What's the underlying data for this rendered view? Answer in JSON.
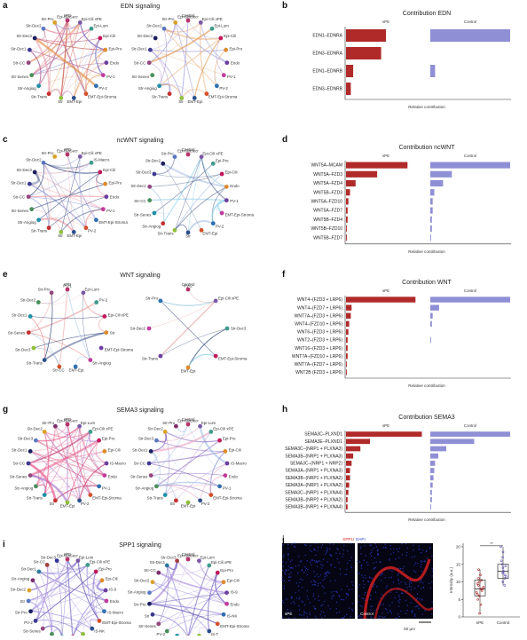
{
  "colors": {
    "spe": "#b02a2a",
    "control": "#8f8fd6",
    "bg": "#ffffff"
  },
  "panels": {
    "a": {
      "letter": "a",
      "title": "EDN signaling",
      "sub_left": "sPE",
      "sub_right": "Control",
      "left_nodes": [
        "Epi-GlaSecr",
        "Epi-Cili xPE",
        "Epi-Lum",
        "Epi-Cili",
        "Epi-Pro",
        "Endo",
        "PV-1",
        "PV-2",
        "EMT-Epi-Stroma",
        "EMT-Epi",
        "Str",
        "Str-Trans",
        "Str-Angiog",
        "Str-Senes",
        "Str-CC",
        "Str-Dec1",
        "Str-Dec3",
        "Str-Dec2",
        "Str-Pro"
      ],
      "right_nodes": [
        "Epi-GlaSecr",
        "Epi-Cili xPE",
        "Epi-Lum",
        "Epi-Cili",
        "Epi-Pro",
        "Endo",
        "PV-1",
        "PV-2",
        "EMT-Epi-Stroma",
        "EMT-Epi",
        "Str",
        "Str-Trans",
        "Str-Angiog",
        "Str-Senes",
        "Str-CC",
        "Str-Dec1",
        "Str-Dec3",
        "Str-Dec2",
        "Str-Pro"
      ]
    },
    "c": {
      "letter": "c",
      "title": "ncWNT signaling",
      "sub_left": "sPE",
      "sub_right": "Control",
      "left_nodes": [
        "Epi-GlaSecr",
        "Epi-Cili xPE",
        "IS-Macro",
        "Epi-Cili",
        "Epi-Pro",
        "Endo",
        "PV-1",
        "EMT-Epi-Stroma",
        "PV-2",
        "EMT-Epi",
        "Str",
        "Str-Trans",
        "Str-Angiog",
        "Str-Senes",
        "Str-CC",
        "Str-Dec1",
        "Str-Dec3",
        "Str-Dec2",
        "Str-Pro"
      ],
      "right_nodes": [
        "Epi-GlaSecr",
        "Epi-Cili xPE",
        "Epi-Pro",
        "Epi-Cili",
        "Endo",
        "PV-1",
        "EMT-Epi-Stroma",
        "PV-2",
        "EMT-Epi",
        "Str",
        "Str-Trans",
        "Str-Angiog",
        "Str-Senes",
        "Str-CC",
        "Str-Dec1",
        "Str-Dec3",
        "Str-Dec2",
        "Str-Pro"
      ]
    },
    "e": {
      "letter": "e",
      "title": "WNT signaling",
      "sub_left": "sPE",
      "sub_right": "Control",
      "left_nodes": [
        "PV-1",
        "Epi-Lum",
        "PV-2",
        "Epi-Cili xPE",
        "Str",
        "EMT-Epi-Stroma",
        "Str-Angiog",
        "EMT-Epi",
        "Str-CC",
        "Str-Trans",
        "Str-Dec3",
        "Str-Senes",
        "Str-Dec1",
        "Str-Dec2",
        "Str-Pro"
      ],
      "right_nodes": [
        "PV-2",
        "Epi-Cili xPE",
        "Str-Dec3",
        "EMT-Epi-Stroma",
        "EMT-Epi",
        "Str-Trans",
        "Str-Dec2",
        "Str-Pro"
      ]
    },
    "g": {
      "letter": "g",
      "title": "SEMA3 signaling",
      "sub_left": "sPE",
      "sub_right": "Control",
      "left_nodes": [
        "Epi-GlaSecr",
        "Epi-Lum",
        "Epi-Cili xPE",
        "Epi-Pro",
        "Epi-Cili",
        "IS-Macro",
        "Endo",
        "PV-1",
        "EMT-Epi-Stroma",
        "PV-2",
        "EMT-Epi",
        "Str",
        "Str-Trans",
        "Str-Angiog",
        "Str-Senes",
        "Str-CC",
        "Str-Dec1",
        "Str-Dec3",
        "Str-Dec2",
        "Str-Pro"
      ],
      "right_nodes": [
        "Epi-GlaSecr",
        "Epi-Lum",
        "Epi-Cili xPE",
        "Epi-Pro",
        "Epi-Cili",
        "IS-Macro",
        "Endo",
        "PV-1",
        "EMT-Epi-Stroma",
        "PV-2",
        "EMT-Epi",
        "Str",
        "Str-Trans",
        "Str-Angiog",
        "Str-Senes",
        "Str-CC",
        "Str-Dec1",
        "Str-Dec3",
        "Str-Dec2",
        "Str-Pro"
      ]
    },
    "i": {
      "letter": "i",
      "title": "SPP1 signaling",
      "sub_left": "sPE",
      "sub_right": "Control",
      "left_nodes": [
        "Epi-GlaSecr",
        "Epi-Lum",
        "Epi-Cili xPE",
        "Epi-Pro",
        "Epi-Cili",
        "IS-9",
        "Endo",
        "IS-Macro",
        "EMT-Epi-Stroma",
        "IS-NK",
        "EMT-Epi",
        "IS-T",
        "Str-Trans",
        "PV-1",
        "Str-Senes",
        "PV-2",
        "Str-Pro",
        "Str",
        "Str-Dec2",
        "Str-Angiog",
        "Str-Dec1",
        "Str-CC",
        "Str-Dec3"
      ],
      "right_nodes": [
        "Epi-GlaSecr",
        "Epi-Lum",
        "Epi-Cili xPE",
        "Epi-Pro",
        "Epi-Cili",
        "IS-9",
        "Endo",
        "IS-NK",
        "EMT-Epi-Stroma",
        "IS-T",
        "EMT-Epi",
        "PV-1",
        "Str-Trans",
        "PV-2",
        "Str-Senes",
        "Str",
        "Str-Pro",
        "Str-Angiog",
        "Str-Dec2",
        "Str-CC",
        "Str-Dec1",
        "Str-Dec3"
      ]
    },
    "j": {
      "letter": "j",
      "stain_title_a": "SPP1",
      "stain_title_sep": "/",
      "stain_title_b": "DAPI",
      "left_label": "sPE",
      "right_label": "Control",
      "scale": "50 µm"
    }
  },
  "chart_data": [
    {
      "panel": "b",
      "type": "bar",
      "title": "Contribution EDN",
      "xlabel": "Relative contribution",
      "groups": [
        "sPE",
        "Control"
      ],
      "categories": [
        "EDN1–EDNRA",
        "EDN3–EDNRA",
        "EDN1–EDNRB",
        "EDN3–EDNRB"
      ],
      "series": [
        {
          "name": "sPE",
          "values": [
            0.5,
            0.44,
            0.09,
            0.06
          ]
        },
        {
          "name": "Control",
          "values": [
            1.0,
            0,
            0.06,
            0
          ]
        }
      ]
    },
    {
      "panel": "d",
      "type": "bar",
      "title": "Contribution ncWNT",
      "xlabel": "Relative contribution",
      "groups": [
        "sPE",
        "Control"
      ],
      "categories": [
        "WNT5A–MCAM",
        "WNT5A–FZD3",
        "WNT5A–FZD4",
        "WNT5B–FZD3",
        "WNT5A–FZD10",
        "WNT5A–FZD7",
        "WNT5B–FZD4",
        "WNT5B–FZD10",
        "WNT5B–FZD7"
      ],
      "series": [
        {
          "name": "sPE",
          "values": [
            0.77,
            0.39,
            0.12,
            0.05,
            0.03,
            0.02,
            0.02,
            0.01,
            0.01
          ]
        },
        {
          "name": "Control",
          "values": [
            1.0,
            0.27,
            0.16,
            0.05,
            0.03,
            0.03,
            0.02,
            0.02,
            0.01
          ]
        }
      ]
    },
    {
      "panel": "f",
      "type": "bar",
      "title": "Contribution WNT",
      "xlabel": "Relative contribution",
      "groups": [
        "sPE",
        "Control"
      ],
      "categories": [
        "WNT4–(FZD3 + LRP6)",
        "WNT4–(FZD7 + LRP6)",
        "WNT7A–(FZD3 + LRP6)",
        "WNT4–(FZD10 + LRP6)",
        "WNT6–(FZD3 + LRP6)",
        "WNT2–(FZD3 + LRP6)",
        "WNT16–(FZD3 + LRP6)",
        "WNT7A–(FZD10 + LRP6)",
        "WNT7A–(FZD7 + LRP6)",
        "WNT2B (FZD3 + LRP6)"
      ],
      "series": [
        {
          "name": "sPE",
          "values": [
            0.87,
            0.07,
            0.06,
            0.04,
            0.03,
            0.02,
            0.02,
            0.02,
            0.01,
            0.01
          ]
        },
        {
          "name": "Control",
          "values": [
            1.0,
            0.11,
            0.03,
            0.02,
            0,
            0.01,
            0,
            0,
            0,
            0
          ]
        }
      ]
    },
    {
      "panel": "h",
      "type": "bar",
      "title": "Contribution SEMA3",
      "xlabel": "Relative contribution",
      "groups": [
        "sPE",
        "Control"
      ],
      "categories": [
        "SEMA3C–PLXND1",
        "SEMA3E–PLXND1",
        "SEMA3C–(NRP1 + PLXNA3)",
        "SEMA3B–(NRP1 + PLXNA3)",
        "SEMA3C–(NRP1 + NRP2)",
        "SEMA3A–(NRP1 + PLXNA3)",
        "SEMA3B–(NRP1 + PLXNA2)",
        "SEMA3A–(NRP1 + PLXNA2)",
        "SEMA3C–(NRP1 + PLXNA4)",
        "SEMA3B–(NRP2 + PLXNA2)",
        "SEMA3B–(NRP1 + PLXNA4)"
      ],
      "series": [
        {
          "name": "sPE",
          "values": [
            0.95,
            0.3,
            0.18,
            0.09,
            0.07,
            0.05,
            0.05,
            0.04,
            0.03,
            0.02,
            0.02
          ]
        },
        {
          "name": "Control",
          "values": [
            1.0,
            0.55,
            0.2,
            0.1,
            0.06,
            0.05,
            0.04,
            0.03,
            0.02,
            0.02,
            0.01
          ]
        }
      ]
    },
    {
      "panel": "j",
      "type": "box",
      "ylabel": "Intensity (a.u.)",
      "categories": [
        "sPE",
        "Control"
      ],
      "y_ticks": [
        0,
        5,
        10,
        15,
        20
      ],
      "ylim": [
        0,
        21
      ],
      "significance": "**",
      "boxes": [
        {
          "name": "sPE",
          "min": 1,
          "q1": 6,
          "median": 8,
          "q3": 10.5,
          "max": 13.5,
          "points": [
            1,
            3.5,
            5,
            6,
            6.5,
            7,
            7.5,
            8,
            8,
            8.5,
            9,
            9.5,
            10,
            10.5,
            11,
            12,
            13.5
          ]
        },
        {
          "name": "Control",
          "min": 9,
          "q1": 11,
          "median": 13,
          "q3": 15,
          "max": 20,
          "points": [
            9,
            10,
            11,
            11.5,
            12,
            12.5,
            13,
            13,
            14,
            14.5,
            15,
            16,
            17,
            18.5,
            20
          ]
        }
      ]
    }
  ]
}
